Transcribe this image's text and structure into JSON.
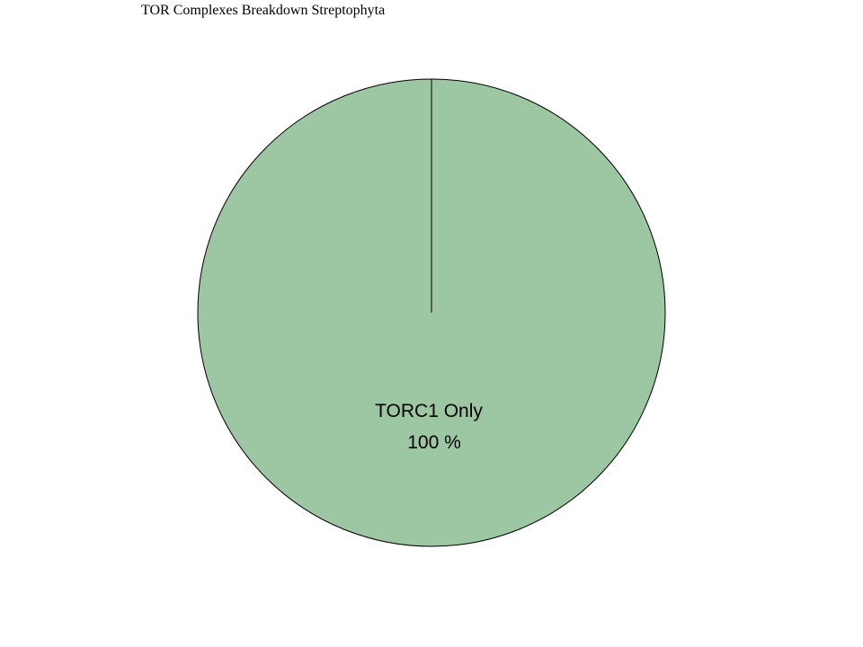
{
  "chart_data": {
    "type": "pie",
    "title": "TOR Complexes Breakdown Streptophyta",
    "slices": [
      {
        "label": "TORC1 Only",
        "value": 100,
        "percent_label": "100 %",
        "color": "#9dc6a2"
      }
    ]
  }
}
